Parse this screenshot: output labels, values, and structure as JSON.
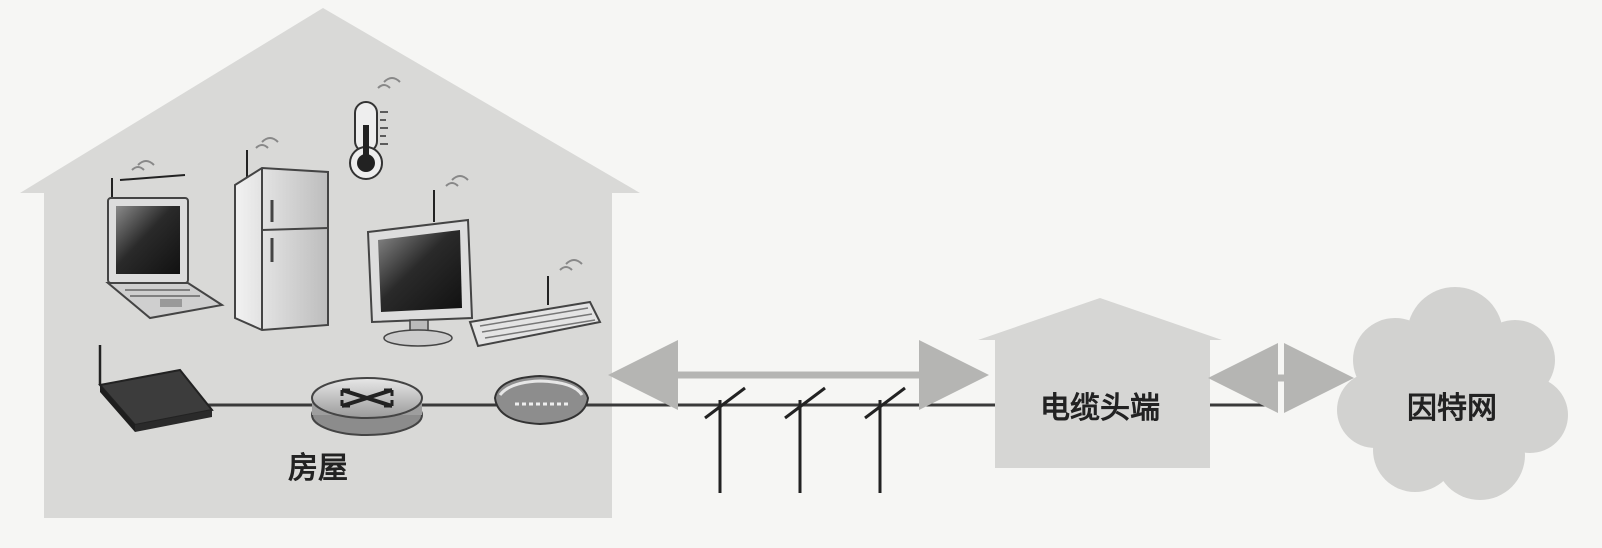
{
  "labels": {
    "house": "房屋",
    "cable_headend": "电缆头端",
    "internet": "因特网"
  },
  "colors": {
    "background": "#f6f6f4",
    "house_fill": "#d9d9d7",
    "headend_fill": "#d6d6d4",
    "cloud_fill": "#d2d2d0",
    "arrow": "#b5b5b3",
    "line": "#3a3a3a"
  },
  "icons": [
    "laptop-icon",
    "refrigerator-icon",
    "thermometer-icon",
    "desktop-monitor-icon",
    "keyboard-icon",
    "wireless-access-point-icon",
    "router-icon",
    "cable-modem-icon",
    "utility-pole-icon",
    "cloud-icon"
  ]
}
